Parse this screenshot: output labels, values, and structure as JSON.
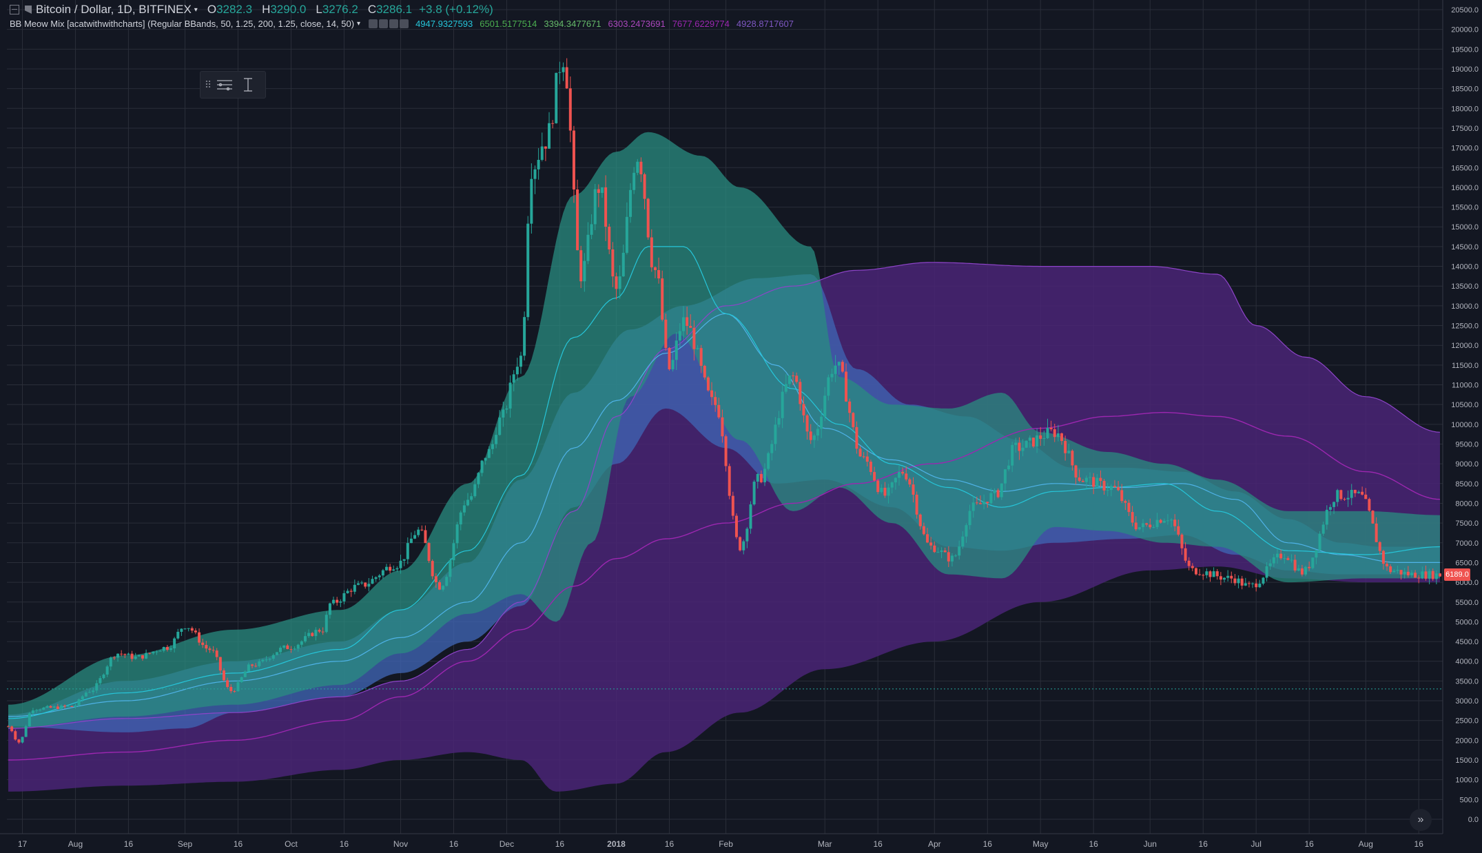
{
  "header": {
    "symbol": "Bitcoin / Dollar, 1D, BITFINEX",
    "open_label": "O",
    "open": "3282.3",
    "high_label": "H",
    "high": "3290.0",
    "low_label": "L",
    "low": "3276.2",
    "close_label": "C",
    "close": "3286.1",
    "change": "+3.8 (+0.12%)"
  },
  "indicator": {
    "name": "BB Meow Mix [acatwithwithcharts] (Regular BBands, 50, 1.25, 200, 1.25, close, 14, 50)",
    "values": [
      {
        "text": "4947.9327593",
        "color": "#26c6da"
      },
      {
        "text": "6501.5177514",
        "color": "#4caf50"
      },
      {
        "text": "3394.3477671",
        "color": "#66bb6a"
      },
      {
        "text": "6303.2473691",
        "color": "#ab47bc"
      },
      {
        "text": "7677.6229774",
        "color": "#9c27b0"
      },
      {
        "text": "4928.8717607",
        "color": "#7e57c2"
      }
    ]
  },
  "toolbar": {
    "items": [
      "drag-handle-icon",
      "lines-settings-icon",
      "cursor-text-icon"
    ]
  },
  "last_price_label": "6189.0",
  "scroll_icon": "double-chevron-right-icon",
  "colors": {
    "background": "#131722",
    "grid": "#2a2e39",
    "up": "#26a69a",
    "down": "#ef5350",
    "short_band": "#2a8c80",
    "mid_band": "#3f63b0",
    "long_band": "#4a2475",
    "short_basis": "#26c6da",
    "mid_basis": "#4fb3e8",
    "long_basis": "#9c27b0"
  },
  "chart_data": {
    "type": "candlestick",
    "title": "Bitcoin / Dollar, 1D, BITFINEX",
    "x_scale": "time (daily)",
    "x_range": [
      "2017-07-13",
      "2018-08-22"
    ],
    "y_range": [
      0,
      20500
    ],
    "y_ticks": [
      0,
      500,
      1000,
      1500,
      2000,
      2500,
      3000,
      3500,
      4000,
      4500,
      5000,
      5500,
      6000,
      6500,
      7000,
      7500,
      8000,
      8500,
      9000,
      9500,
      10000,
      10500,
      11000,
      11500,
      12000,
      12500,
      13000,
      13500,
      14000,
      14500,
      15000,
      15500,
      16000,
      16500,
      17000,
      17500,
      18000,
      18500,
      19000,
      19500,
      20000,
      20500
    ],
    "x_ticks": [
      {
        "label": "17",
        "date": "2017-07-17"
      },
      {
        "label": "Aug",
        "date": "2017-08-01"
      },
      {
        "label": "16",
        "date": "2017-08-16"
      },
      {
        "label": "Sep",
        "date": "2017-09-01"
      },
      {
        "label": "16",
        "date": "2017-09-16"
      },
      {
        "label": "Oct",
        "date": "2017-10-01"
      },
      {
        "label": "16",
        "date": "2017-10-16"
      },
      {
        "label": "Nov",
        "date": "2017-11-01"
      },
      {
        "label": "16",
        "date": "2017-11-16"
      },
      {
        "label": "Dec",
        "date": "2017-12-01"
      },
      {
        "label": "16",
        "date": "2017-12-16"
      },
      {
        "label": "2018",
        "date": "2018-01-01"
      },
      {
        "label": "16",
        "date": "2018-01-16"
      },
      {
        "label": "Feb",
        "date": "2018-02-01"
      },
      {
        "label": "Mar",
        "date": "2018-03-01"
      },
      {
        "label": "16",
        "date": "2018-03-16"
      },
      {
        "label": "Apr",
        "date": "2018-04-01"
      },
      {
        "label": "16",
        "date": "2018-04-16"
      },
      {
        "label": "May",
        "date": "2018-05-01"
      },
      {
        "label": "16",
        "date": "2018-05-16"
      },
      {
        "label": "Jun",
        "date": "2018-06-01"
      },
      {
        "label": "16",
        "date": "2018-06-16"
      },
      {
        "label": "Jul",
        "date": "2018-07-01"
      },
      {
        "label": "16",
        "date": "2018-07-16"
      },
      {
        "label": "Aug",
        "date": "2018-08-01"
      },
      {
        "label": "16",
        "date": "2018-08-16"
      }
    ],
    "close_anchors": [
      [
        "2017-07-13",
        2350
      ],
      [
        "2017-07-16",
        1950
      ],
      [
        "2017-07-20",
        2800
      ],
      [
        "2017-07-31",
        2850
      ],
      [
        "2017-08-05",
        3250
      ],
      [
        "2017-08-13",
        4200
      ],
      [
        "2017-08-18",
        4100
      ],
      [
        "2017-08-27",
        4350
      ],
      [
        "2017-09-01",
        4900
      ],
      [
        "2017-09-08",
        4300
      ],
      [
        "2017-09-14",
        3250
      ],
      [
        "2017-09-20",
        3900
      ],
      [
        "2017-09-30",
        4350
      ],
      [
        "2017-10-10",
        4800
      ],
      [
        "2017-10-12",
        5450
      ],
      [
        "2017-10-20",
        5900
      ],
      [
        "2017-10-31",
        6450
      ],
      [
        "2017-11-06",
        7300
      ],
      [
        "2017-11-12",
        5900
      ],
      [
        "2017-11-20",
        8100
      ],
      [
        "2017-11-26",
        9300
      ],
      [
        "2017-11-29",
        10100
      ],
      [
        "2017-12-05",
        11700
      ],
      [
        "2017-12-08",
        16500
      ],
      [
        "2017-12-12",
        17200
      ],
      [
        "2017-12-17",
        19300
      ],
      [
        "2017-12-22",
        13800
      ],
      [
        "2017-12-27",
        16000
      ],
      [
        "2018-01-01",
        13400
      ],
      [
        "2018-01-07",
        16800
      ],
      [
        "2018-01-12",
        13900
      ],
      [
        "2018-01-16",
        11400
      ],
      [
        "2018-01-20",
        12600
      ],
      [
        "2018-01-29",
        10500
      ],
      [
        "2018-02-05",
        6900
      ],
      [
        "2018-02-10",
        8600
      ],
      [
        "2018-02-20",
        11200
      ],
      [
        "2018-02-25",
        9600
      ],
      [
        "2018-03-04",
        11500
      ],
      [
        "2018-03-12",
        9100
      ],
      [
        "2018-03-18",
        8200
      ],
      [
        "2018-03-23",
        8800
      ],
      [
        "2018-03-31",
        6900
      ],
      [
        "2018-04-06",
        6600
      ],
      [
        "2018-04-12",
        7900
      ],
      [
        "2018-04-18",
        8200
      ],
      [
        "2018-04-24",
        9400
      ],
      [
        "2018-05-05",
        9800
      ],
      [
        "2018-05-13",
        8600
      ],
      [
        "2018-05-21",
        8400
      ],
      [
        "2018-05-29",
        7400
      ],
      [
        "2018-06-06",
        7650
      ],
      [
        "2018-06-13",
        6300
      ],
      [
        "2018-06-24",
        6100
      ],
      [
        "2018-06-29",
        5900
      ],
      [
        "2018-07-09",
        6700
      ],
      [
        "2018-07-14",
        6250
      ],
      [
        "2018-07-24",
        8200
      ],
      [
        "2018-07-30",
        8200
      ],
      [
        "2018-08-08",
        6300
      ],
      [
        "2018-08-14",
        6200
      ],
      [
        "2018-08-22",
        6189
      ]
    ],
    "bands": {
      "short_upper": [
        [
          "2017-07-13",
          2900
        ],
        [
          "2017-08-15",
          4150
        ],
        [
          "2017-09-15",
          4800
        ],
        [
          "2017-10-15",
          5300
        ],
        [
          "2017-11-01",
          6300
        ],
        [
          "2017-11-20",
          8500
        ],
        [
          "2017-12-05",
          11200
        ],
        [
          "2017-12-20",
          15800
        ],
        [
          "2018-01-01",
          16900
        ],
        [
          "2018-01-10",
          17400
        ],
        [
          "2018-01-25",
          16800
        ],
        [
          "2018-02-05",
          16000
        ],
        [
          "2018-02-25",
          14500
        ],
        [
          "2018-03-05",
          11200
        ],
        [
          "2018-03-20",
          10500
        ],
        [
          "2018-04-05",
          10400
        ],
        [
          "2018-04-20",
          10800
        ],
        [
          "2018-05-01",
          9800
        ],
        [
          "2018-05-20",
          9300
        ],
        [
          "2018-06-05",
          9000
        ],
        [
          "2018-06-20",
          8600
        ],
        [
          "2018-07-10",
          7800
        ],
        [
          "2018-08-01",
          7800
        ],
        [
          "2018-08-22",
          7700
        ]
      ],
      "short_basis": [
        [
          "2017-07-13",
          2550
        ],
        [
          "2017-08-15",
          3200
        ],
        [
          "2017-09-15",
          3700
        ],
        [
          "2017-10-15",
          4300
        ],
        [
          "2017-11-01",
          5300
        ],
        [
          "2017-11-20",
          6800
        ],
        [
          "2017-12-05",
          8700
        ],
        [
          "2017-12-20",
          12200
        ],
        [
          "2018-01-01",
          13200
        ],
        [
          "2018-01-10",
          14500
        ],
        [
          "2018-01-20",
          14500
        ],
        [
          "2018-02-01",
          12800
        ],
        [
          "2018-02-20",
          10900
        ],
        [
          "2018-03-05",
          10000
        ],
        [
          "2018-03-20",
          9000
        ],
        [
          "2018-04-05",
          8400
        ],
        [
          "2018-04-20",
          7900
        ],
        [
          "2018-05-05",
          8300
        ],
        [
          "2018-05-20",
          8400
        ],
        [
          "2018-06-05",
          8500
        ],
        [
          "2018-06-20",
          7800
        ],
        [
          "2018-07-10",
          6800
        ],
        [
          "2018-08-01",
          6700
        ],
        [
          "2018-08-22",
          6900
        ]
      ],
      "short_lower": [
        [
          "2017-07-13",
          2300
        ],
        [
          "2017-08-15",
          2600
        ],
        [
          "2017-09-15",
          2900
        ],
        [
          "2017-10-15",
          3400
        ],
        [
          "2017-11-01",
          4200
        ],
        [
          "2017-11-20",
          5200
        ],
        [
          "2017-12-05",
          5700
        ],
        [
          "2017-12-15",
          5000
        ],
        [
          "2017-12-25",
          7000
        ],
        [
          "2018-01-05",
          10700
        ],
        [
          "2018-01-18",
          12300
        ],
        [
          "2018-02-05",
          9600
        ],
        [
          "2018-02-20",
          7800
        ],
        [
          "2018-03-05",
          8400
        ],
        [
          "2018-03-20",
          7500
        ],
        [
          "2018-04-05",
          6200
        ],
        [
          "2018-04-20",
          6100
        ],
        [
          "2018-05-05",
          7400
        ],
        [
          "2018-05-20",
          7300
        ],
        [
          "2018-06-05",
          7000
        ],
        [
          "2018-06-20",
          6900
        ],
        [
          "2018-07-10",
          6000
        ],
        [
          "2018-08-01",
          6100
        ],
        [
          "2018-08-22",
          6100
        ]
      ],
      "mid_upper": [
        [
          "2017-07-13",
          2650
        ],
        [
          "2017-08-15",
          3500
        ],
        [
          "2017-09-15",
          4000
        ],
        [
          "2017-10-15",
          4500
        ],
        [
          "2017-11-01",
          5300
        ],
        [
          "2017-11-20",
          6500
        ],
        [
          "2017-12-05",
          8600
        ],
        [
          "2017-12-20",
          10800
        ],
        [
          "2018-01-05",
          12400
        ],
        [
          "2018-01-20",
          13000
        ],
        [
          "2018-02-10",
          13700
        ],
        [
          "2018-02-25",
          13800
        ],
        [
          "2018-03-10",
          11400
        ],
        [
          "2018-03-25",
          10500
        ],
        [
          "2018-04-10",
          10200
        ],
        [
          "2018-04-25",
          9600
        ],
        [
          "2018-05-10",
          8900
        ],
        [
          "2018-05-25",
          8900
        ],
        [
          "2018-06-10",
          8800
        ],
        [
          "2018-06-25",
          8300
        ],
        [
          "2018-07-10",
          7600
        ],
        [
          "2018-07-25",
          7000
        ],
        [
          "2018-08-05",
          6900
        ],
        [
          "2018-08-22",
          6900
        ]
      ],
      "mid_basis": [
        [
          "2017-07-13",
          2600
        ],
        [
          "2017-08-15",
          3000
        ],
        [
          "2017-09-15",
          3500
        ],
        [
          "2017-10-15",
          4000
        ],
        [
          "2017-11-01",
          4600
        ],
        [
          "2017-11-20",
          5500
        ],
        [
          "2017-12-05",
          7000
        ],
        [
          "2017-12-20",
          9400
        ],
        [
          "2018-01-01",
          10600
        ],
        [
          "2018-01-15",
          11800
        ],
        [
          "2018-02-01",
          12800
        ],
        [
          "2018-02-15",
          11500
        ],
        [
          "2018-03-01",
          9900
        ],
        [
          "2018-03-20",
          9100
        ],
        [
          "2018-04-05",
          8600
        ],
        [
          "2018-04-20",
          8300
        ],
        [
          "2018-05-05",
          8500
        ],
        [
          "2018-05-25",
          8400
        ],
        [
          "2018-06-10",
          8500
        ],
        [
          "2018-06-25",
          8100
        ],
        [
          "2018-07-10",
          7000
        ],
        [
          "2018-07-25",
          6700
        ],
        [
          "2018-08-10",
          6500
        ],
        [
          "2018-08-22",
          6500
        ]
      ],
      "mid_lower": [
        [
          "2017-07-13",
          2350
        ],
        [
          "2017-08-15",
          2200
        ],
        [
          "2017-09-01",
          2300
        ],
        [
          "2017-09-15",
          2700
        ],
        [
          "2017-10-15",
          3100
        ],
        [
          "2017-11-01",
          3700
        ],
        [
          "2017-11-20",
          4500
        ],
        [
          "2017-12-05",
          5400
        ],
        [
          "2017-12-20",
          7900
        ],
        [
          "2018-01-01",
          9000
        ],
        [
          "2018-01-15",
          10400
        ],
        [
          "2018-02-01",
          9400
        ],
        [
          "2018-02-15",
          8500
        ],
        [
          "2018-03-01",
          8600
        ],
        [
          "2018-03-20",
          7900
        ],
        [
          "2018-04-05",
          6900
        ],
        [
          "2018-04-20",
          6800
        ],
        [
          "2018-05-05",
          7000
        ],
        [
          "2018-05-25",
          7100
        ],
        [
          "2018-06-10",
          7200
        ],
        [
          "2018-06-25",
          6700
        ],
        [
          "2018-07-10",
          6300
        ],
        [
          "2018-07-25",
          6200
        ],
        [
          "2018-08-10",
          6200
        ],
        [
          "2018-08-22",
          6200
        ]
      ],
      "long_upper": [
        [
          "2017-07-13",
          2300
        ],
        [
          "2017-08-15",
          2550
        ],
        [
          "2017-09-15",
          2700
        ],
        [
          "2017-10-15",
          3100
        ],
        [
          "2017-11-01",
          3500
        ],
        [
          "2017-11-20",
          4300
        ],
        [
          "2017-12-05",
          5500
        ],
        [
          "2017-12-20",
          7800
        ],
        [
          "2018-01-01",
          10200
        ],
        [
          "2018-01-15",
          11900
        ],
        [
          "2018-02-01",
          13000
        ],
        [
          "2018-02-20",
          13500
        ],
        [
          "2018-03-10",
          13900
        ],
        [
          "2018-03-31",
          14100
        ],
        [
          "2018-05-01",
          14000
        ],
        [
          "2018-06-01",
          14000
        ],
        [
          "2018-06-20",
          13800
        ],
        [
          "2018-07-01",
          12500
        ],
        [
          "2018-07-15",
          11700
        ],
        [
          "2018-08-01",
          10700
        ],
        [
          "2018-08-22",
          9800
        ]
      ],
      "long_basis": [
        [
          "2017-07-13",
          1500
        ],
        [
          "2017-08-15",
          1700
        ],
        [
          "2017-09-15",
          2000
        ],
        [
          "2017-10-15",
          2500
        ],
        [
          "2017-11-01",
          3100
        ],
        [
          "2017-11-20",
          4000
        ],
        [
          "2017-12-05",
          4800
        ],
        [
          "2017-12-20",
          5900
        ],
        [
          "2018-01-01",
          6600
        ],
        [
          "2018-01-15",
          7100
        ],
        [
          "2018-02-01",
          7500
        ],
        [
          "2018-02-20",
          8000
        ],
        [
          "2018-03-10",
          8500
        ],
        [
          "2018-03-31",
          9000
        ],
        [
          "2018-05-01",
          9900
        ],
        [
          "2018-05-20",
          10200
        ],
        [
          "2018-06-05",
          10300
        ],
        [
          "2018-06-20",
          10200
        ],
        [
          "2018-07-10",
          9700
        ],
        [
          "2018-08-01",
          8800
        ],
        [
          "2018-08-22",
          8100
        ]
      ],
      "long_lower": [
        [
          "2017-07-13",
          700
        ],
        [
          "2017-08-15",
          850
        ],
        [
          "2017-09-15",
          950
        ],
        [
          "2017-10-15",
          1250
        ],
        [
          "2017-11-01",
          1500
        ],
        [
          "2017-11-20",
          1700
        ],
        [
          "2017-12-05",
          1500
        ],
        [
          "2017-12-15",
          700
        ],
        [
          "2018-01-01",
          900
        ],
        [
          "2018-01-15",
          1700
        ],
        [
          "2018-02-05",
          2700
        ],
        [
          "2018-03-01",
          3800
        ],
        [
          "2018-04-01",
          4500
        ],
        [
          "2018-05-01",
          5500
        ],
        [
          "2018-06-01",
          6300
        ],
        [
          "2018-06-20",
          6400
        ],
        [
          "2018-07-10",
          6100
        ],
        [
          "2018-08-01",
          6000
        ],
        [
          "2018-08-22",
          6000
        ]
      ]
    },
    "last_price": 6189.0,
    "horizontal_line": 3300
  }
}
